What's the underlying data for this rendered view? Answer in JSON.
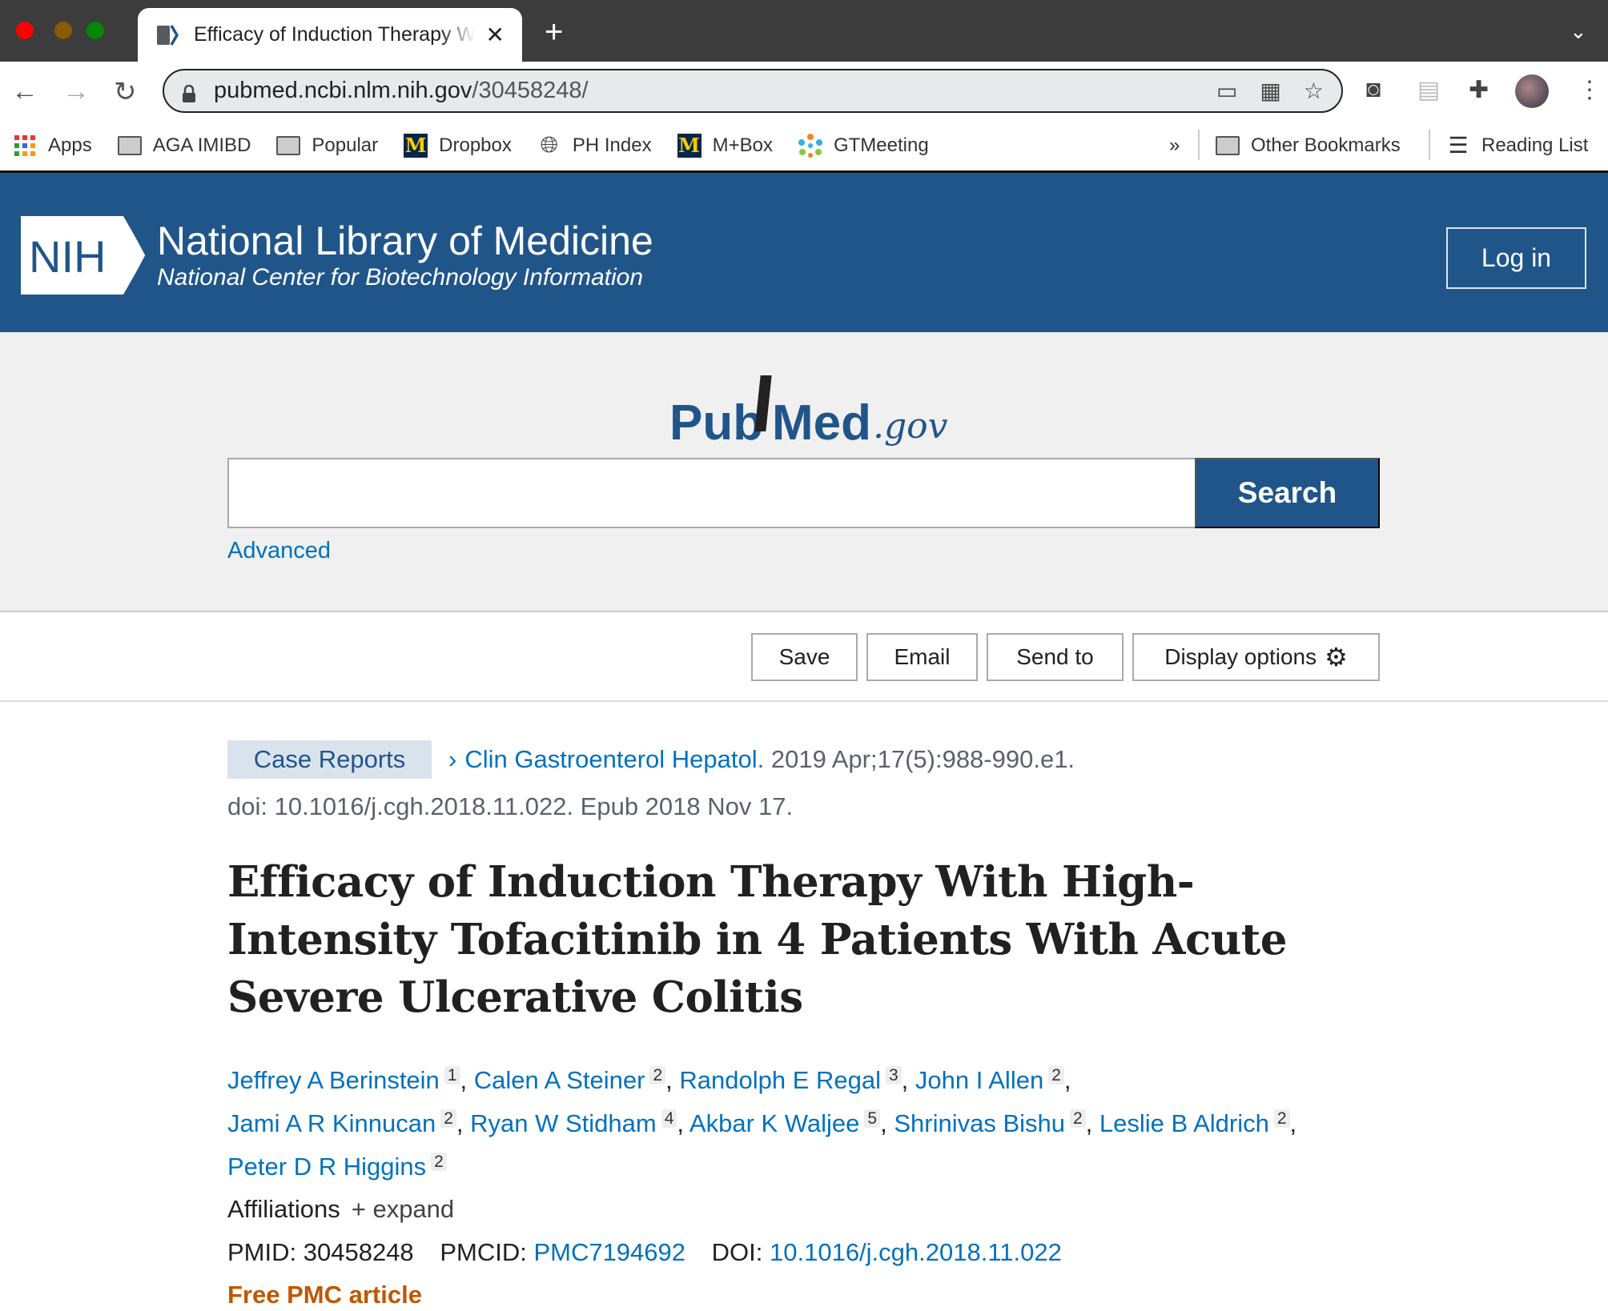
{
  "browser": {
    "tab_title": "Efficacy of Induction Therapy With High-Intensity Tofacitinib",
    "url_host": "pubmed.ncbi.nlm.nih.gov",
    "url_path": "/30458248/",
    "bookmarks": [
      "Apps",
      "AGA IMIBD",
      "Popular",
      "Dropbox",
      "PH Index",
      "M+Box",
      "GTMeeting"
    ],
    "overflow": "»",
    "other_bookmarks": "Other Bookmarks",
    "reading_list": "Reading List"
  },
  "header": {
    "logo_text": "NIH",
    "title": "National Library of Medicine",
    "subtitle": "National Center for Biotechnology Information",
    "login": "Log in",
    "color": "#20558a"
  },
  "search": {
    "logo_pub": "Pub",
    "logo_med": "Med",
    "logo_gov": ".gov",
    "query": "",
    "button": "Search",
    "advanced": "Advanced"
  },
  "actions": {
    "save": "Save",
    "email": "Email",
    "send_to": "Send to",
    "display_options": "Display options"
  },
  "article": {
    "type": "Case Reports",
    "journal": "Clin Gastroenterol Hepatol.",
    "citation": "2019 Apr;17(5):988-990.e1.",
    "doi_line": "doi: 10.1016/j.cgh.2018.11.022. Epub 2018 Nov 17.",
    "title": "Efficacy of Induction Therapy With High-Intensity Tofacitinib in 4 Patients With Acute Severe Ulcerative Colitis",
    "authors": [
      {
        "name": "Jeffrey A Berinstein",
        "aff": "1"
      },
      {
        "name": "Calen A Steiner",
        "aff": "2"
      },
      {
        "name": "Randolph E Regal",
        "aff": "3"
      },
      {
        "name": "John I Allen",
        "aff": "2"
      },
      {
        "name": "Jami A R Kinnucan",
        "aff": "2"
      },
      {
        "name": "Ryan W Stidham",
        "aff": "4"
      },
      {
        "name": "Akbar K Waljee",
        "aff": "5"
      },
      {
        "name": "Shrinivas Bishu",
        "aff": "2"
      },
      {
        "name": "Leslie B Aldrich",
        "aff": "2"
      },
      {
        "name": "Peter D R Higgins",
        "aff": "2"
      }
    ],
    "affiliations_label": "Affiliations",
    "expand_label": "+ expand",
    "pmid_label": "PMID:",
    "pmid": "30458248",
    "pmcid_label": "PMCID:",
    "pmcid": "PMC7194692",
    "doi_label": "DOI:",
    "doi": "10.1016/j.cgh.2018.11.022",
    "free_pmc": "Free PMC article"
  }
}
